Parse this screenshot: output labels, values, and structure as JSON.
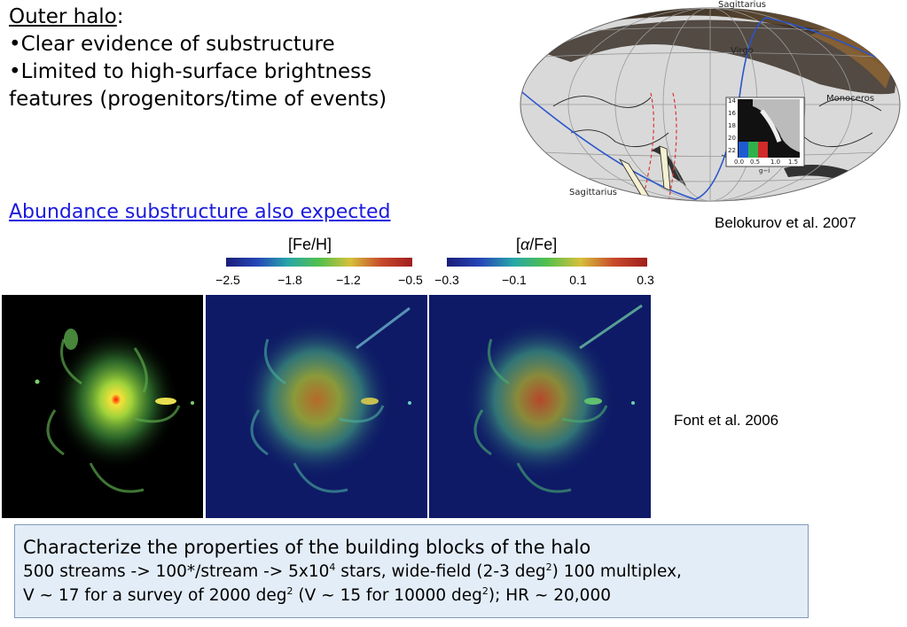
{
  "bullets": {
    "heading": "Outer halo",
    "heading_colon": ":",
    "item1": "•Clear evidence of substructure",
    "item2": "•Limited to high-surface brightness",
    "item2_cont": "features (progenitors/time of events)"
  },
  "abundance_link": "Abundance substructure also expected",
  "credits": {
    "belokurov": "Belokurov et al. 2007",
    "font": "Font et al. 2006"
  },
  "sky_map": {
    "labels": {
      "sagittarius_top": "Sagittarius",
      "sagittarius_bottom": "Sagittarius",
      "virgo": "Virgo",
      "monoceros": "Monoceros"
    },
    "inset": {
      "y_ticks": [
        "14",
        "16",
        "18",
        "20",
        "22"
      ],
      "x_ticks": [
        "0.0",
        "0.5",
        "1.0",
        "1.5"
      ],
      "x_label": "g−i"
    }
  },
  "colorbars": {
    "feh": {
      "title": "[Fe/H]",
      "ticks": [
        "−2.5",
        "−1.8",
        "−1.2",
        "−0.5"
      ]
    },
    "alpha": {
      "title_open": "[",
      "title_alpha": "α",
      "title_close": "/Fe]",
      "ticks": [
        "−0.3",
        "−0.1",
        "0.1",
        "0.3"
      ]
    }
  },
  "box": {
    "heading": "Characterize the properties of the building blocks of the halo",
    "line1_a": "500 streams -> 100*/stream -> 5x10",
    "line1_exp1": "4",
    "line1_b": " stars, wide-field (2-3 deg",
    "line1_exp2": "2",
    "line1_c": ") 100 multiplex,",
    "line2_a": "V ~ 17 for a survey of 2000 deg",
    "line2_exp1": "2",
    "line2_b": " (V ~ 15 for 10000 deg",
    "line2_exp2": "2",
    "line2_c": "); HR ~ 20,000"
  },
  "colors": {
    "link": "#1a1adf",
    "box_bg": "#e3edf8",
    "box_border": "#7f9ab8",
    "panel_dark": "#0e1a66"
  }
}
